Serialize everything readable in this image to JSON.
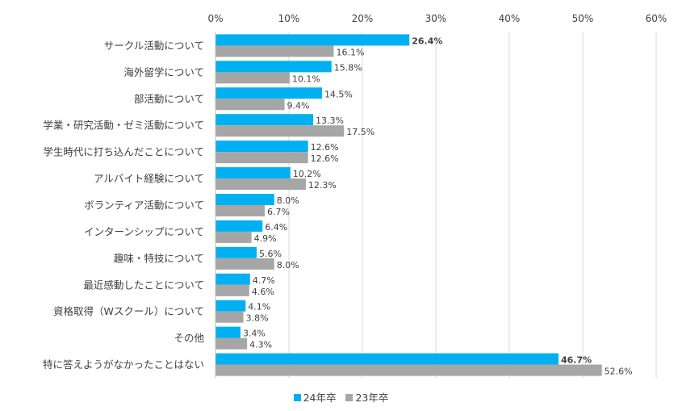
{
  "chart_data": {
    "type": "bar",
    "orientation": "horizontal",
    "title": "",
    "xlabel": "",
    "ylabel": "",
    "xlim": [
      0,
      60
    ],
    "x_ticks": [
      "0%",
      "10%",
      "20%",
      "30%",
      "40%",
      "50%",
      "60%"
    ],
    "grid": true,
    "legend_position": "bottom",
    "categories": [
      "サークル活動について",
      "海外留学について",
      "部活動について",
      "学業・研究活動・ゼミ活動について",
      "学生時代に打ち込んだことについて",
      "アルバイト経験について",
      "ボランティア活動について",
      "インターンシップについて",
      "趣味・特技について",
      "最近感動したことについて",
      "資格取得（Wスクール）について",
      "その他",
      "特に答えようがなかったことはない"
    ],
    "series": [
      {
        "name": "24年卒",
        "color": "#00b0f0",
        "values": [
          26.4,
          15.8,
          14.5,
          13.3,
          12.6,
          10.2,
          8.0,
          6.4,
          5.6,
          4.7,
          4.1,
          3.4,
          46.7
        ],
        "labels": [
          "26.4%",
          "15.8%",
          "14.5%",
          "13.3%",
          "12.6%",
          "10.2%",
          "8.0%",
          "6.4%",
          "5.6%",
          "4.7%",
          "4.1%",
          "3.4%",
          "46.7%"
        ],
        "bold_indices": [
          0,
          12
        ]
      },
      {
        "name": "23年卒",
        "color": "#a6a6a6",
        "values": [
          16.1,
          10.1,
          9.4,
          17.5,
          12.6,
          12.3,
          6.7,
          4.9,
          8.0,
          4.6,
          3.8,
          4.3,
          52.6
        ],
        "labels": [
          "16.1%",
          "10.1%",
          "9.4%",
          "17.5%",
          "12.6%",
          "12.3%",
          "6.7%",
          "4.9%",
          "8.0%",
          "4.6%",
          "3.8%",
          "4.3%",
          "52.6%"
        ],
        "bold_indices": []
      }
    ]
  }
}
